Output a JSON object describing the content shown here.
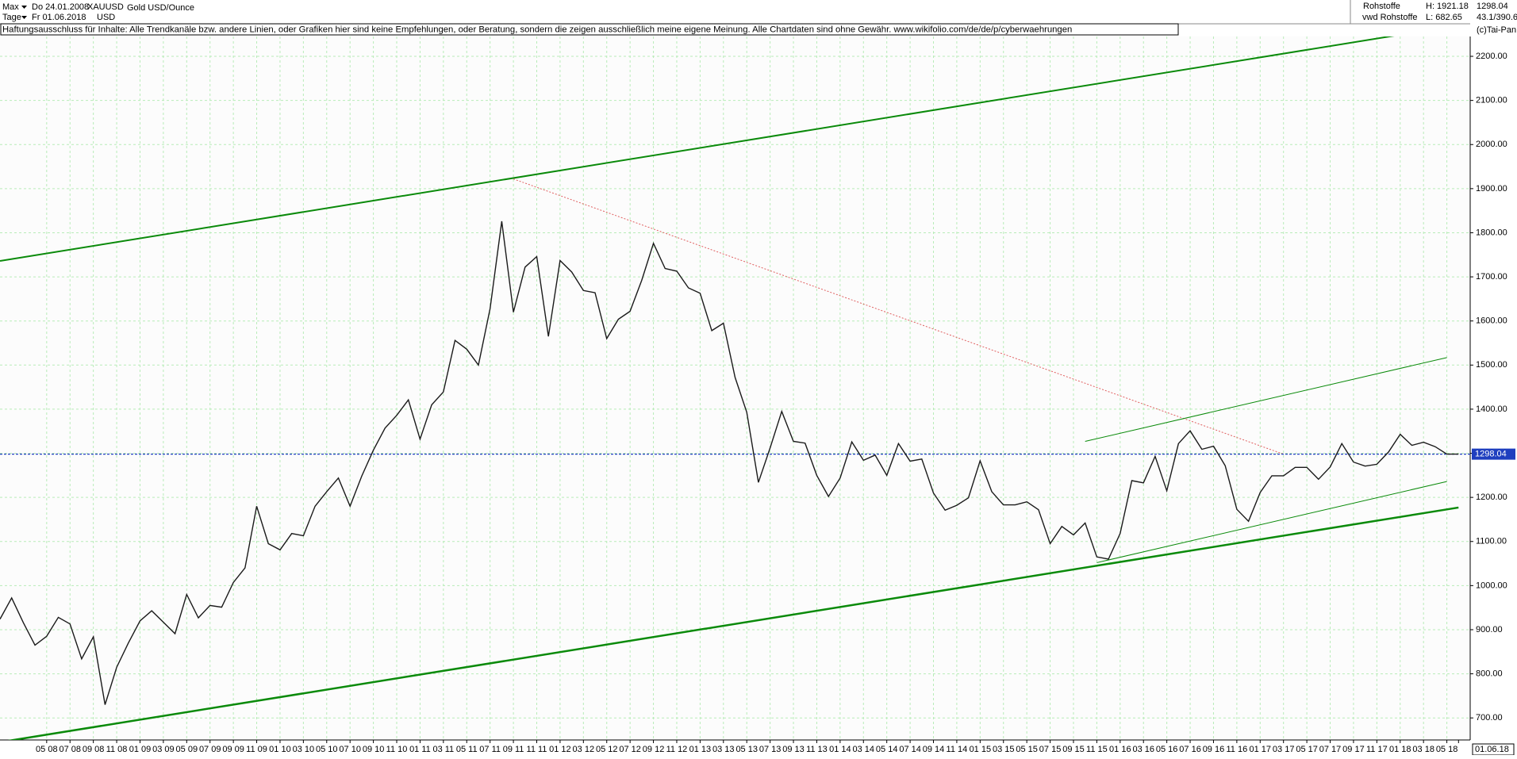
{
  "header": {
    "range": "Max",
    "start_label": "Do 24.01.2008",
    "symbol": "XAUUSD",
    "name": "Gold USD/Ounce",
    "period": "Tage",
    "end_label": "Fr 01.06.2018",
    "currency": "USD",
    "group": "Rohstoffe",
    "high": "H: 1921.18",
    "source": "vwd Rohstoffe",
    "low": "L: 682.65",
    "ratio": "43.1/390.6",
    "copyright": "(c)Tai-Pan",
    "disclaimer": "Haftungsausschluss für Inhalte: Alle Trendkanäle bzw. andere Linien, oder Grafiken hier sind keine Empfehlungen, oder Beratung, sondern die zeigen ausschließlich meine eigene Meinung. Alle Chartdaten sind ohne Gewähr.  www.wikifolio.com/de/de/p/cyberwaehrungen"
  },
  "chart_data": {
    "type": "line",
    "color": "#1a1a1a",
    "x": [
      "2008-01",
      "2008-02",
      "2008-03",
      "2008-04",
      "2008-05",
      "2008-06",
      "2008-07",
      "2008-08",
      "2008-09",
      "2008-10",
      "2008-11",
      "2008-12",
      "2009-01",
      "2009-02",
      "2009-03",
      "2009-04",
      "2009-05",
      "2009-06",
      "2009-07",
      "2009-08",
      "2009-09",
      "2009-10",
      "2009-11",
      "2009-12",
      "2010-01",
      "2010-02",
      "2010-03",
      "2010-04",
      "2010-05",
      "2010-06",
      "2010-07",
      "2010-08",
      "2010-09",
      "2010-10",
      "2010-11",
      "2010-12",
      "2011-01",
      "2011-02",
      "2011-03",
      "2011-04",
      "2011-05",
      "2011-06",
      "2011-07",
      "2011-08",
      "2011-09",
      "2011-10",
      "2011-11",
      "2011-12",
      "2012-01",
      "2012-02",
      "2012-03",
      "2012-04",
      "2012-05",
      "2012-06",
      "2012-07",
      "2012-08",
      "2012-09",
      "2012-10",
      "2012-11",
      "2012-12",
      "2013-01",
      "2013-02",
      "2013-03",
      "2013-04",
      "2013-05",
      "2013-06",
      "2013-07",
      "2013-08",
      "2013-09",
      "2013-10",
      "2013-11",
      "2013-12",
      "2014-01",
      "2014-02",
      "2014-03",
      "2014-04",
      "2014-05",
      "2014-06",
      "2014-07",
      "2014-08",
      "2014-09",
      "2014-10",
      "2014-11",
      "2014-12",
      "2015-01",
      "2015-02",
      "2015-03",
      "2015-04",
      "2015-05",
      "2015-06",
      "2015-07",
      "2015-08",
      "2015-09",
      "2015-10",
      "2015-11",
      "2015-12",
      "2016-01",
      "2016-02",
      "2016-03",
      "2016-04",
      "2016-05",
      "2016-06",
      "2016-07",
      "2016-08",
      "2016-09",
      "2016-10",
      "2016-11",
      "2016-12",
      "2017-01",
      "2017-02",
      "2017-03",
      "2017-04",
      "2017-05",
      "2017-06",
      "2017-07",
      "2017-08",
      "2017-09",
      "2017-10",
      "2017-11",
      "2017-12",
      "2018-01",
      "2018-02",
      "2018-03",
      "2018-04",
      "2018-05",
      "2018-06"
    ],
    "values": [
      924,
      972,
      916,
      865,
      885,
      928,
      913,
      834,
      884,
      730,
      815,
      870,
      920,
      943,
      917,
      891,
      980,
      927,
      955,
      951,
      1007,
      1040,
      1180,
      1095,
      1081,
      1118,
      1113,
      1180,
      1213,
      1244,
      1180,
      1248,
      1307,
      1357,
      1386,
      1421,
      1332,
      1410,
      1439,
      1556,
      1536,
      1500,
      1628,
      1826,
      1620,
      1722,
      1746,
      1565,
      1737,
      1711,
      1669,
      1664,
      1560,
      1604,
      1622,
      1692,
      1776,
      1719,
      1713,
      1675,
      1663,
      1578,
      1595,
      1472,
      1393,
      1234,
      1312,
      1395,
      1327,
      1323,
      1250,
      1202,
      1244,
      1326,
      1284,
      1296,
      1250,
      1322,
      1282,
      1287,
      1210,
      1171,
      1182,
      1199,
      1283,
      1213,
      1183,
      1183,
      1190,
      1172,
      1095,
      1134,
      1115,
      1142,
      1065,
      1060,
      1118,
      1238,
      1233,
      1293,
      1215,
      1322,
      1351,
      1309,
      1316,
      1272,
      1173,
      1146,
      1211,
      1249,
      1249,
      1268,
      1268,
      1241,
      1269,
      1322,
      1280,
      1271,
      1275,
      1303,
      1343,
      1318,
      1325,
      1315,
      1298,
      1298
    ],
    "xlim": [
      "2008-01",
      "2018-07"
    ],
    "xticks": [
      {
        "value": "2008-05",
        "label": "05 08"
      },
      {
        "value": "2008-07",
        "label": "07 08"
      },
      {
        "value": "2008-09",
        "label": "09 08"
      },
      {
        "value": "2008-11",
        "label": "11 08"
      },
      {
        "value": "2009-01",
        "label": "01 09"
      },
      {
        "value": "2009-03",
        "label": "03 09"
      },
      {
        "value": "2009-05",
        "label": "05 09"
      },
      {
        "value": "2009-07",
        "label": "07 09"
      },
      {
        "value": "2009-09",
        "label": "09 09"
      },
      {
        "value": "2009-11",
        "label": "11 09"
      },
      {
        "value": "2010-01",
        "label": "01 10"
      },
      {
        "value": "2010-03",
        "label": "03 10"
      },
      {
        "value": "2010-05",
        "label": "05 10"
      },
      {
        "value": "2010-07",
        "label": "07 10"
      },
      {
        "value": "2010-09",
        "label": "09 10"
      },
      {
        "value": "2010-11",
        "label": "11 10"
      },
      {
        "value": "2011-01",
        "label": "01 11"
      },
      {
        "value": "2011-03",
        "label": "03 11"
      },
      {
        "value": "2011-05",
        "label": "05 11"
      },
      {
        "value": "2011-07",
        "label": "07 11"
      },
      {
        "value": "2011-09",
        "label": "09 11"
      },
      {
        "value": "2011-11",
        "label": "11 11"
      },
      {
        "value": "2012-01",
        "label": "01 12"
      },
      {
        "value": "2012-03",
        "label": "03 12"
      },
      {
        "value": "2012-05",
        "label": "05 12"
      },
      {
        "value": "2012-07",
        "label": "07 12"
      },
      {
        "value": "2012-09",
        "label": "09 12"
      },
      {
        "value": "2012-11",
        "label": "11 12"
      },
      {
        "value": "2013-01",
        "label": "01 13"
      },
      {
        "value": "2013-03",
        "label": "03 13"
      },
      {
        "value": "2013-05",
        "label": "05 13"
      },
      {
        "value": "2013-07",
        "label": "07 13"
      },
      {
        "value": "2013-09",
        "label": "09 13"
      },
      {
        "value": "2013-11",
        "label": "11 13"
      },
      {
        "value": "2014-01",
        "label": "01 14"
      },
      {
        "value": "2014-03",
        "label": "03 14"
      },
      {
        "value": "2014-05",
        "label": "05 14"
      },
      {
        "value": "2014-07",
        "label": "07 14"
      },
      {
        "value": "2014-09",
        "label": "09 14"
      },
      {
        "value": "2014-11",
        "label": "11 14"
      },
      {
        "value": "2015-01",
        "label": "01 15"
      },
      {
        "value": "2015-03",
        "label": "03 15"
      },
      {
        "value": "2015-05",
        "label": "05 15"
      },
      {
        "value": "2015-07",
        "label": "07 15"
      },
      {
        "value": "2015-09",
        "label": "09 15"
      },
      {
        "value": "2015-11",
        "label": "11 15"
      },
      {
        "value": "2016-01",
        "label": "01 16"
      },
      {
        "value": "2016-03",
        "label": "03 16"
      },
      {
        "value": "2016-05",
        "label": "05 16"
      },
      {
        "value": "2016-07",
        "label": "07 16"
      },
      {
        "value": "2016-09",
        "label": "09 16"
      },
      {
        "value": "2016-11",
        "label": "11 16"
      },
      {
        "value": "2017-01",
        "label": "01 17"
      },
      {
        "value": "2017-03",
        "label": "03 17"
      },
      {
        "value": "2017-05",
        "label": "05 17"
      },
      {
        "value": "2017-07",
        "label": "07 17"
      },
      {
        "value": "2017-09",
        "label": "09 17"
      },
      {
        "value": "2017-11",
        "label": "11 17"
      },
      {
        "value": "2018-01",
        "label": "01 18"
      },
      {
        "value": "2018-03",
        "label": "03 18"
      },
      {
        "value": "2018-05",
        "label": "05 18"
      }
    ],
    "end_date": {
      "value": "2018-06",
      "label": "01.06.18"
    },
    "ylim": [
      650,
      2245
    ],
    "yticks": [
      {
        "value": 700,
        "label": "700.00"
      },
      {
        "value": 800,
        "label": "800.00"
      },
      {
        "value": 900,
        "label": "900.00"
      },
      {
        "value": 1000,
        "label": "1000.00"
      },
      {
        "value": 1100,
        "label": "1100.00"
      },
      {
        "value": 1200,
        "label": "1200.00"
      },
      {
        "value": 1300,
        "label": "1300.00"
      },
      {
        "value": 1400,
        "label": "1400.00"
      },
      {
        "value": 1500,
        "label": "1500.00"
      },
      {
        "value": 1600,
        "label": "1600.00"
      },
      {
        "value": 1700,
        "label": "1700.00"
      },
      {
        "value": 1800,
        "label": "1800.00"
      },
      {
        "value": 1900,
        "label": "1900.00"
      },
      {
        "value": 2000,
        "label": "2000.00"
      },
      {
        "value": 2100,
        "label": "2100.00"
      },
      {
        "value": 2200,
        "label": "2200.00"
      }
    ],
    "grid": true,
    "grid_color": "#b8ecb8",
    "last_price": {
      "value": 1298.04,
      "label": "1298.04"
    },
    "last_price_color": "#1f3fbf",
    "trendlines": [
      {
        "x": [
          "2008-01",
          "2018-05"
        ],
        "y": [
          1736,
          2266
        ],
        "color": "#0a8a0a",
        "width": 2,
        "dash": "none"
      },
      {
        "x": [
          "2008-01",
          "2018-06"
        ],
        "y": [
          645,
          1177
        ],
        "color": "#0a8a0a",
        "width": 2.5,
        "dash": "none"
      },
      {
        "x": [
          "2011-09",
          "2017-03"
        ],
        "y": [
          1922,
          1298
        ],
        "color": "#e06060",
        "width": 1,
        "dash": "2,2"
      },
      {
        "x": [
          "2015-10",
          "2018-05"
        ],
        "y": [
          1327,
          1517
        ],
        "color": "#0a8a0a",
        "width": 1,
        "dash": "none"
      },
      {
        "x": [
          "2015-11",
          "2018-05"
        ],
        "y": [
          1052,
          1236
        ],
        "color": "#0a8a0a",
        "width": 1,
        "dash": "none"
      }
    ]
  }
}
